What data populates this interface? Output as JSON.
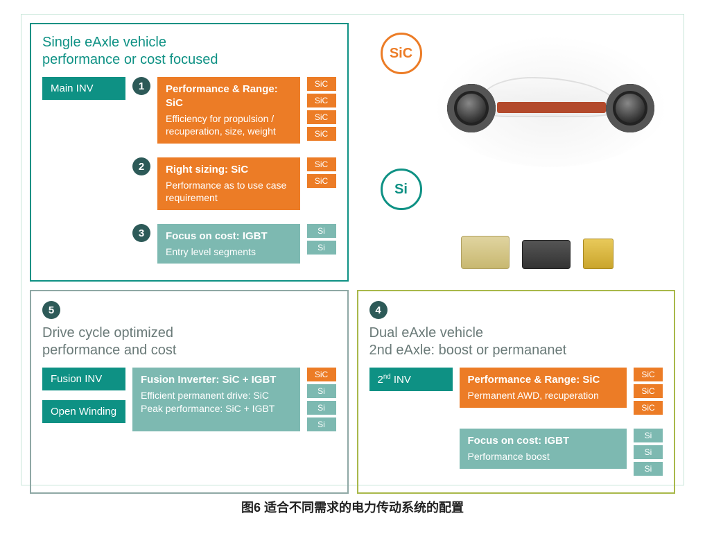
{
  "colors": {
    "teal": "#0e9184",
    "teal_light": "#7db9b1",
    "orange": "#ec7c26",
    "olive": "#a8b84a",
    "badge_bg": "#2d5a58",
    "title_teal": "#0e9184",
    "title_gray": "#6a7a78"
  },
  "panel1": {
    "title_l1": "Single eAxle vehicle",
    "title_l2": "performance or cost focused",
    "left_tag": "Main INV",
    "options": [
      {
        "num": "1",
        "bg": "#ec7c26",
        "title": "Performance & Range: SiC",
        "desc": "Efficiency for propulsion / recuperation, size, weight",
        "chips": [
          [
            "SiC",
            "#ec7c26"
          ],
          [
            "SiC",
            "#ec7c26"
          ],
          [
            "SiC",
            "#ec7c26"
          ],
          [
            "SiC",
            "#ec7c26"
          ]
        ]
      },
      {
        "num": "2",
        "bg": "#ec7c26",
        "title": "Right sizing: SiC",
        "desc": "Performance as to use case requirement",
        "chips": [
          [
            "SiC",
            "#ec7c26"
          ],
          [
            "SiC",
            "#ec7c26"
          ]
        ]
      },
      {
        "num": "3",
        "bg": "#7db9b1",
        "title": "Focus on cost: IGBT",
        "desc": "Entry level segments",
        "chips": [
          [
            "Si",
            "#7db9b1"
          ],
          [
            "Si",
            "#7db9b1"
          ]
        ]
      }
    ]
  },
  "vis": {
    "sic_label": "SiC",
    "si_label": "Si"
  },
  "panel5": {
    "num": "5",
    "title_l1": "Drive cycle optimized",
    "title_l2": "performance and cost",
    "left_tags": [
      "Fusion INV",
      "Open Winding"
    ],
    "block": {
      "bg": "#7db9b1",
      "title": "Fusion Inverter: SiC + IGBT",
      "line1": "Efficient permanent drive: SiC",
      "line2": "Peak performance: SiC + IGBT"
    },
    "chips": [
      [
        "SiC",
        "#ec7c26"
      ],
      [
        "Si",
        "#7db9b1"
      ],
      [
        "Si",
        "#7db9b1"
      ],
      [
        "Si",
        "#7db9b1"
      ]
    ]
  },
  "panel4": {
    "num": "4",
    "title_l1": "Dual eAxle vehicle",
    "title_l2": "2nd eAxle: boost or permananet",
    "left_tag_html": "2<sup>nd</sup> INV",
    "options": [
      {
        "bg": "#ec7c26",
        "title": "Performance & Range: SiC",
        "desc": "Permanent AWD, recuperation",
        "chips": [
          [
            "SiC",
            "#ec7c26"
          ],
          [
            "SiC",
            "#ec7c26"
          ],
          [
            "SiC",
            "#ec7c26"
          ]
        ]
      },
      {
        "bg": "#7db9b1",
        "title": "Focus on cost: IGBT",
        "desc": "Performance boost",
        "chips": [
          [
            "Si",
            "#7db9b1"
          ],
          [
            "Si",
            "#7db9b1"
          ],
          [
            "Si",
            "#7db9b1"
          ]
        ]
      }
    ]
  },
  "caption": "图6 适合不同需求的电力传动系统的配置"
}
